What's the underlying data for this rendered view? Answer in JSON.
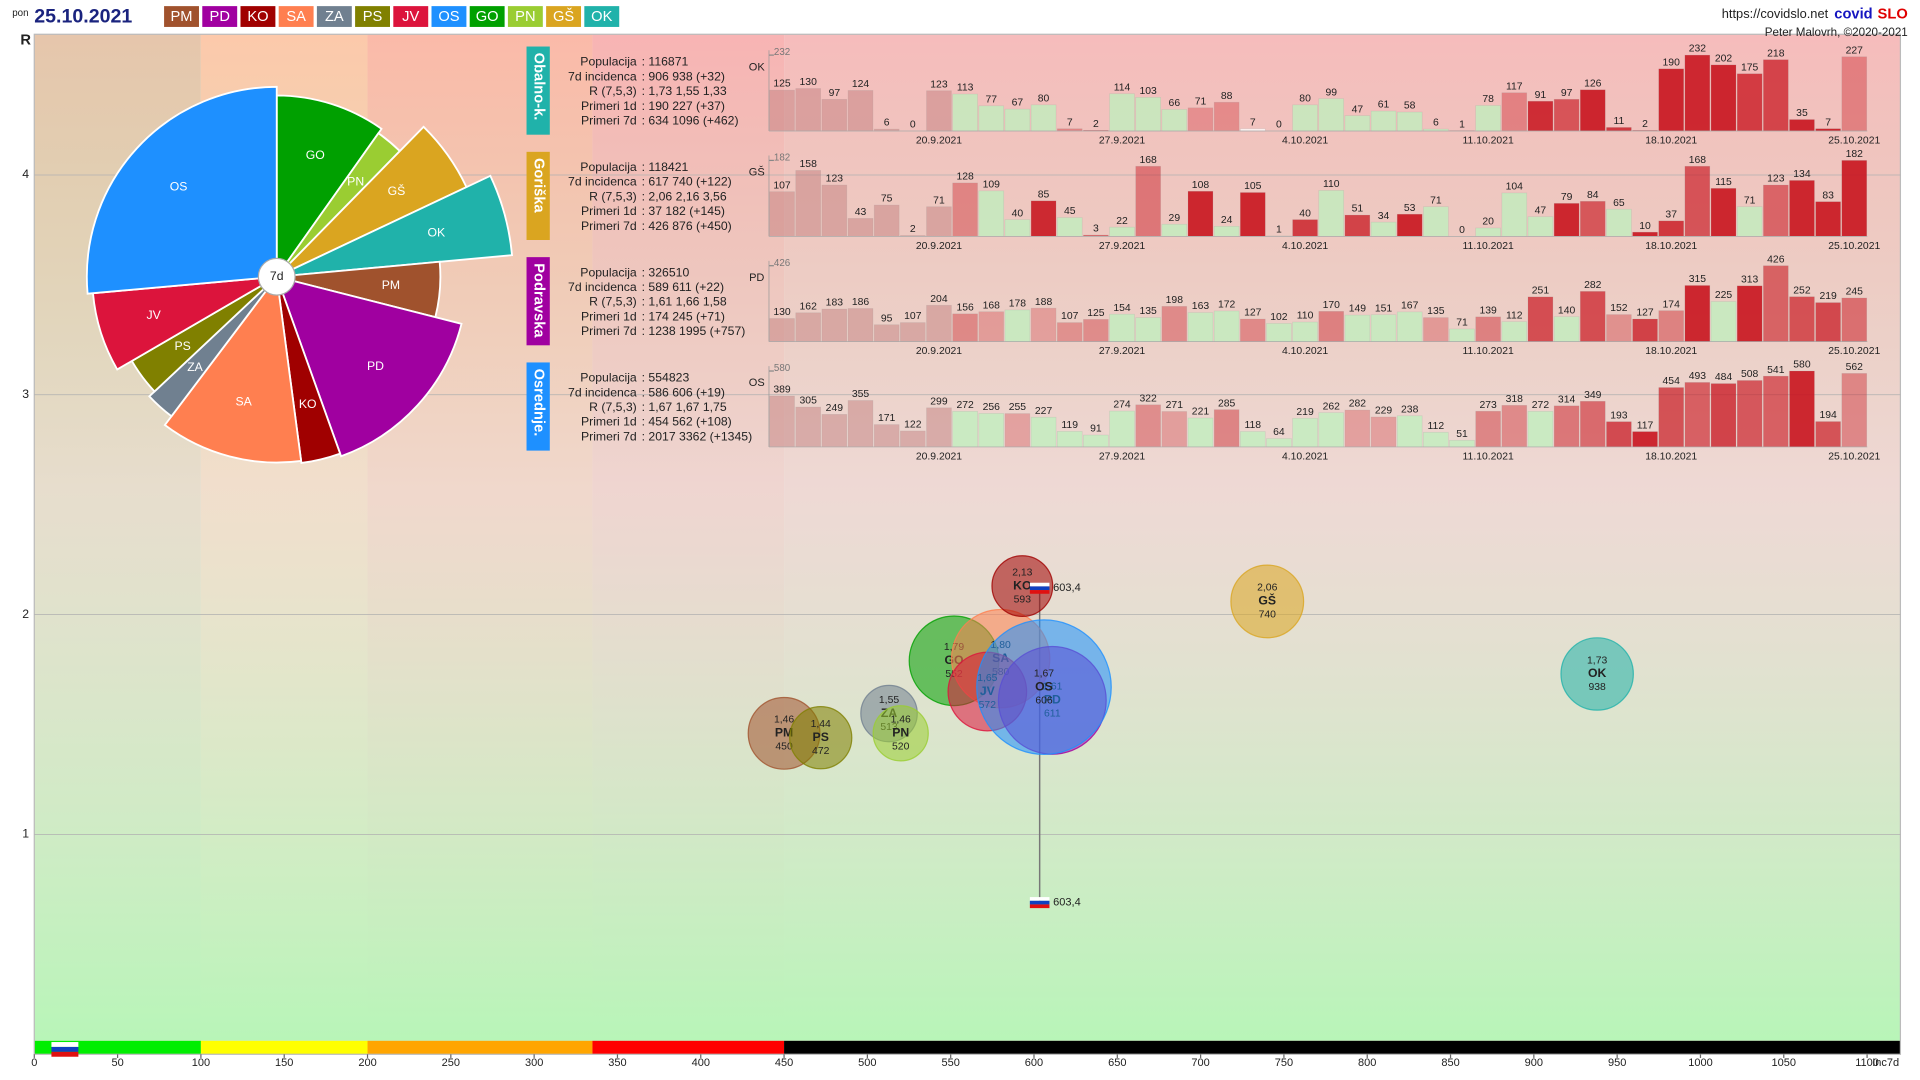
{
  "header": {
    "day": "pon",
    "date": "25.10.2021",
    "url": "https://covidslo.net",
    "brand_a": "covid",
    "brand_b": "SLO",
    "author": "Peter Malovrh, ©2020-2021"
  },
  "regions": [
    {
      "code": "PM",
      "color": "#a0522d"
    },
    {
      "code": "PD",
      "color": "#a000a0"
    },
    {
      "code": "KO",
      "color": "#a00000"
    },
    {
      "code": "SA",
      "color": "#ff7f50"
    },
    {
      "code": "ZA",
      "color": "#708090"
    },
    {
      "code": "PS",
      "color": "#808000"
    },
    {
      "code": "JV",
      "color": "#dc143c"
    },
    {
      "code": "OS",
      "color": "#1e90ff"
    },
    {
      "code": "GO",
      "color": "#00a000"
    },
    {
      "code": "PN",
      "color": "#9acd32"
    },
    {
      "code": "GŠ",
      "color": "#daa520"
    },
    {
      "code": "OK",
      "color": "#20b2aa"
    }
  ],
  "chart_data": [
    {
      "type": "bubble",
      "y_label": "R",
      "x_label": "Inc7d",
      "xlim": [
        0,
        1120
      ],
      "xticks": [
        0,
        50,
        100,
        150,
        200,
        250,
        300,
        350,
        400,
        450,
        500,
        550,
        600,
        650,
        700,
        750,
        800,
        850,
        900,
        950,
        1000,
        1050,
        1100
      ],
      "ylim": [
        0,
        4.64
      ],
      "yticks": [
        1,
        2,
        3,
        4
      ],
      "grid": true,
      "zones": [
        {
          "from": 0,
          "to": 100,
          "color": "#00ee00",
          "bg": "#e6c6ac"
        },
        {
          "from": 100,
          "to": 200,
          "color": "#ffff00",
          "bg": "#fcc9ab"
        },
        {
          "from": 200,
          "to": 335,
          "color": "#ffa500",
          "bg": "#fbbaa9"
        },
        {
          "from": 335,
          "to": 450,
          "color": "#ff0000",
          "bg": "#f8b4b4"
        },
        {
          "from": 450,
          "to": 1120,
          "color": "#000000",
          "bg": "#f6bcbc"
        }
      ],
      "points": [
        {
          "name": "PM",
          "color": "#a0522d",
          "x": 450,
          "y": 1.46,
          "y_text": "1,46",
          "size": 114000
        },
        {
          "name": "PS",
          "color": "#808000",
          "x": 472,
          "y": 1.44,
          "y_text": "1,44",
          "size": 76000
        },
        {
          "name": "ZA",
          "color": "#708090",
          "x": 513,
          "y": 1.55,
          "y_text": "1,55",
          "size": 57000
        },
        {
          "name": "PN",
          "color": "#9acd32",
          "x": 520,
          "y": 1.46,
          "y_text": "1,46",
          "size": 53000
        },
        {
          "name": "GO",
          "color": "#00a000",
          "x": 552,
          "y": 1.79,
          "y_text": "1,79",
          "size": 206000
        },
        {
          "name": "SA",
          "color": "#ff7f50",
          "x": 580,
          "y": 1.8,
          "y_text": "1,80",
          "size": 260000
        },
        {
          "name": "JV",
          "color": "#dc143c",
          "x": 572,
          "y": 1.65,
          "y_text": "1,65",
          "size": 146000
        },
        {
          "name": "KO",
          "color": "#a00000",
          "x": 593,
          "y": 2.13,
          "y_text": "2,13",
          "size": 71000
        },
        {
          "name": "PD",
          "color": "#a000a0",
          "x": 611,
          "y": 1.61,
          "y_text": "1,61",
          "size": 326510
        },
        {
          "name": "OS",
          "color": "#1e90ff",
          "x": 606,
          "y": 1.67,
          "y_text": "1,67",
          "size": 554823
        },
        {
          "name": "GŠ",
          "color": "#daa520",
          "x": 740,
          "y": 2.06,
          "y_text": "2,06",
          "size": 118421
        },
        {
          "name": "OK",
          "color": "#20b2aa",
          "x": 938,
          "y": 1.73,
          "y_text": "1,73",
          "size": 116871
        }
      ],
      "national": {
        "x": 603.4,
        "x_text": "603,4",
        "y": [
          2.12,
          0.69
        ]
      }
    },
    {
      "type": "pie",
      "center_label": "7d",
      "categories": [
        "GO",
        "PN",
        "GŠ",
        "OK",
        "PM",
        "PD",
        "KO",
        "SA",
        "ZA",
        "PS",
        "JV",
        "OS"
      ],
      "colors": [
        "#00a000",
        "#9acd32",
        "#daa520",
        "#20b2aa",
        "#a0522d",
        "#a000a0",
        "#a00000",
        "#ff7f50",
        "#708090",
        "#808000",
        "#dc143c",
        "#1e90ff"
      ],
      "values": [
        206000,
        53000,
        118421,
        116871,
        114000,
        326510,
        71000,
        260000,
        57000,
        76000,
        146000,
        554823
      ],
      "radius_values": [
        552,
        520,
        740,
        938,
        450,
        611,
        593,
        580,
        513,
        472,
        572,
        606
      ]
    },
    {
      "type": "bar",
      "region": "Obalno-k.",
      "code": "OK",
      "tab_color": "#20b2aa",
      "ylim": [
        0,
        232
      ],
      "yticks": [
        232
      ],
      "info": [
        {
          "label": "Populacija",
          "value": ": 116871"
        },
        {
          "label": "7d incidenca",
          "value": ": 906 938 (+32)"
        },
        {
          "label": "R (7,5,3)",
          "value": ": 1,73 1,55 1,33"
        },
        {
          "label": "Primeri 1d",
          "value": ": 190 227 (+37)"
        },
        {
          "label": "Primeri 7d",
          "value": ": 634 1096 (+462)"
        }
      ],
      "categories": [
        null,
        null,
        null,
        null,
        null,
        null,
        "20.9.2021",
        null,
        null,
        null,
        null,
        null,
        null,
        "27.9.2021",
        null,
        null,
        null,
        null,
        null,
        null,
        "4.10.2021",
        null,
        null,
        null,
        null,
        null,
        null,
        "11.10.2021",
        null,
        null,
        null,
        null,
        null,
        null,
        "18.10.2021",
        null,
        null,
        null,
        null,
        null,
        null,
        "25.10.2021"
      ],
      "values": [
        125,
        130,
        97,
        124,
        6,
        0,
        123,
        113,
        77,
        67,
        80,
        7,
        2,
        114,
        103,
        66,
        71,
        88,
        7,
        0,
        80,
        99,
        47,
        61,
        58,
        6,
        1,
        78,
        117,
        91,
        97,
        126,
        11,
        2,
        190,
        232,
        202,
        175,
        218,
        35,
        7,
        227
      ]
    },
    {
      "type": "bar",
      "region": "Goriška",
      "code": "GŠ",
      "tab_color": "#daa520",
      "ylim": [
        0,
        182
      ],
      "yticks": [
        182
      ],
      "info": [
        {
          "label": "Populacija",
          "value": ": 118421"
        },
        {
          "label": "7d incidenca",
          "value": ": 617 740 (+122)"
        },
        {
          "label": "R (7,5,3)",
          "value": ": 2,06 2,16 3,56"
        },
        {
          "label": "Primeri 1d",
          "value": ": 37 182 (+145)"
        },
        {
          "label": "Primeri 7d",
          "value": ": 426 876 (+450)"
        }
      ],
      "categories": [
        null,
        null,
        null,
        null,
        null,
        null,
        "20.9.2021",
        null,
        null,
        null,
        null,
        null,
        null,
        "27.9.2021",
        null,
        null,
        null,
        null,
        null,
        null,
        "4.10.2021",
        null,
        null,
        null,
        null,
        null,
        null,
        "11.10.2021",
        null,
        null,
        null,
        null,
        null,
        null,
        "18.10.2021",
        null,
        null,
        null,
        null,
        null,
        null,
        "25.10.2021"
      ],
      "values": [
        107,
        158,
        123,
        43,
        75,
        2,
        71,
        128,
        109,
        40,
        85,
        45,
        3,
        22,
        168,
        29,
        108,
        24,
        105,
        1,
        40,
        110,
        51,
        34,
        53,
        71,
        0,
        20,
        104,
        47,
        79,
        84,
        65,
        10,
        37,
        168,
        115,
        71,
        123,
        134,
        83,
        182
      ]
    },
    {
      "type": "bar",
      "region": "Podravska",
      "code": "PD",
      "tab_color": "#a000a0",
      "ylim": [
        0,
        426
      ],
      "yticks": [
        426
      ],
      "info": [
        {
          "label": "Populacija",
          "value": ": 326510"
        },
        {
          "label": "7d incidenca",
          "value": ": 589 611 (+22)"
        },
        {
          "label": "R (7,5,3)",
          "value": ": 1,61 1,66 1,58"
        },
        {
          "label": "Primeri 1d",
          "value": ": 174 245 (+71)"
        },
        {
          "label": "Primeri 7d",
          "value": ": 1238 1995 (+757)"
        }
      ],
      "categories": [
        null,
        null,
        null,
        null,
        null,
        null,
        "20.9.2021",
        null,
        null,
        null,
        null,
        null,
        null,
        "27.9.2021",
        null,
        null,
        null,
        null,
        null,
        null,
        "4.10.2021",
        null,
        null,
        null,
        null,
        null,
        null,
        "11.10.2021",
        null,
        null,
        null,
        null,
        null,
        null,
        "18.10.2021",
        null,
        null,
        null,
        null,
        null,
        null,
        "25.10.2021"
      ],
      "values": [
        130,
        162,
        183,
        186,
        95,
        107,
        204,
        156,
        168,
        178,
        188,
        107,
        125,
        154,
        135,
        198,
        163,
        172,
        127,
        102,
        110,
        170,
        149,
        151,
        167,
        135,
        71,
        139,
        112,
        251,
        140,
        282,
        152,
        127,
        174,
        315,
        225,
        313,
        426,
        252,
        219,
        245
      ]
    },
    {
      "type": "bar",
      "region": "Osrednje.",
      "code": "OS",
      "tab_color": "#1e90ff",
      "ylim": [
        0,
        580
      ],
      "yticks": [
        580
      ],
      "info": [
        {
          "label": "Populacija",
          "value": ": 554823"
        },
        {
          "label": "7d incidenca",
          "value": ": 586 606 (+19)"
        },
        {
          "label": "R (7,5,3)",
          "value": ": 1,67 1,67 1,75"
        },
        {
          "label": "Primeri 1d",
          "value": ": 454 562 (+108)"
        },
        {
          "label": "Primeri 7d",
          "value": ": 2017 3362 (+1345)"
        }
      ],
      "categories": [
        null,
        null,
        null,
        null,
        null,
        null,
        "20.9.2021",
        null,
        null,
        null,
        null,
        null,
        null,
        "27.9.2021",
        null,
        null,
        null,
        null,
        null,
        null,
        "4.10.2021",
        null,
        null,
        null,
        null,
        null,
        null,
        "11.10.2021",
        null,
        null,
        null,
        null,
        null,
        null,
        "18.10.2021",
        null,
        null,
        null,
        null,
        null,
        null,
        "25.10.2021"
      ],
      "values": [
        389,
        305,
        249,
        355,
        171,
        122,
        299,
        272,
        256,
        255,
        227,
        119,
        91,
        274,
        322,
        271,
        221,
        285,
        118,
        64,
        219,
        262,
        282,
        229,
        238,
        112,
        51,
        273,
        318,
        272,
        314,
        349,
        193,
        117,
        454,
        493,
        484,
        508,
        541,
        580,
        194,
        562
      ]
    }
  ]
}
